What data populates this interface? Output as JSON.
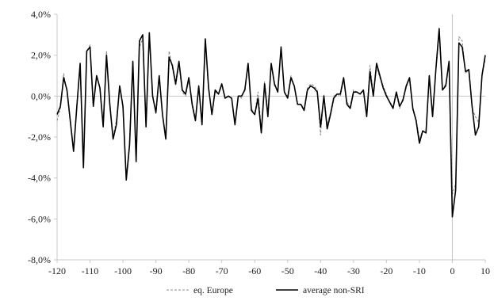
{
  "chart_data": {
    "type": "line",
    "title": "",
    "xlabel": "",
    "ylabel": "",
    "xlim": [
      -120,
      10
    ],
    "ylim": [
      -8.0,
      4.0
    ],
    "x_ticks": [
      -120,
      -110,
      -100,
      -90,
      -80,
      -70,
      -60,
      -50,
      -40,
      -30,
      -20,
      -10,
      0,
      10
    ],
    "x_tick_labels": [
      "-120",
      "-110",
      "-100",
      "-90",
      "-80",
      "-70",
      "-60",
      "-50",
      "-40",
      "-30",
      "-20",
      "-10",
      "0",
      "10"
    ],
    "y_ticks": [
      -8,
      -6,
      -4,
      -2,
      0,
      2,
      4
    ],
    "y_tick_labels": [
      "-8,0%",
      "-6,0%",
      "-4,0%",
      "-2,0%",
      "0,0%",
      "2,0%",
      "4,0%"
    ],
    "grid": false,
    "zero_line": true,
    "vertical_marker_at_x": 0,
    "legend_position": "bottom",
    "colors": {
      "axis": "#c8c8c8",
      "series_nonsri": "#000000",
      "series_europe": "#8c8c8c"
    },
    "x": [
      -120,
      -119,
      -118,
      -117,
      -116,
      -115,
      -114,
      -113,
      -112,
      -111,
      -110,
      -109,
      -108,
      -107,
      -106,
      -105,
      -104,
      -103,
      -102,
      -101,
      -100,
      -99,
      -98,
      -97,
      -96,
      -95,
      -94,
      -93,
      -92,
      -91,
      -90,
      -89,
      -88,
      -87,
      -86,
      -85,
      -84,
      -83,
      -82,
      -81,
      -80,
      -79,
      -78,
      -77,
      -76,
      -75,
      -74,
      -73,
      -72,
      -71,
      -70,
      -69,
      -68,
      -67,
      -66,
      -65,
      -64,
      -63,
      -62,
      -61,
      -60,
      -59,
      -58,
      -57,
      -56,
      -55,
      -54,
      -53,
      -52,
      -51,
      -50,
      -49,
      -48,
      -47,
      -46,
      -45,
      -44,
      -43,
      -42,
      -41,
      -40,
      -39,
      -38,
      -37,
      -36,
      -35,
      -34,
      -33,
      -32,
      -31,
      -30,
      -29,
      -28,
      -27,
      -26,
      -25,
      -24,
      -23,
      -22,
      -21,
      -20,
      -19,
      -18,
      -17,
      -16,
      -15,
      -14,
      -13,
      -12,
      -11,
      -10,
      -9,
      -8,
      -7,
      -6,
      -5,
      -4,
      -3,
      -2,
      -1,
      0,
      1,
      2,
      3,
      4,
      5,
      6,
      7,
      8,
      9,
      10
    ],
    "series": [
      {
        "name": "eq. Europe",
        "style": "dashed",
        "values": [
          -1.2,
          -0.6,
          1.1,
          0.2,
          -1.3,
          -2.6,
          -0.4,
          1.5,
          -3.4,
          2.1,
          2.5,
          -0.4,
          1.0,
          0.4,
          -1.3,
          2.2,
          -0.3,
          -2.0,
          -1.2,
          0.5,
          -0.6,
          -4.0,
          -2.2,
          1.6,
          -3.0,
          2.4,
          2.8,
          -1.4,
          3.0,
          0.1,
          -0.9,
          0.9,
          -0.9,
          -2.0,
          2.2,
          1.4,
          0.5,
          1.5,
          0.2,
          0.0,
          0.8,
          -0.3,
          -1.1,
          0.4,
          -1.3,
          2.7,
          0.3,
          -0.8,
          0.2,
          0.1,
          0.5,
          -0.1,
          0.0,
          -0.1,
          -1.3,
          0.0,
          -0.1,
          0.4,
          1.5,
          -0.6,
          -0.9,
          0.2,
          -1.6,
          0.7,
          -0.8,
          1.6,
          0.5,
          0.3,
          2.3,
          0.2,
          0.0,
          1.0,
          0.5,
          -0.4,
          -0.4,
          -0.6,
          0.4,
          0.6,
          0.5,
          0.3,
          -1.9,
          0.1,
          -1.4,
          -0.8,
          0.0,
          0.1,
          0.0,
          0.8,
          -0.3,
          -0.5,
          0.3,
          0.2,
          0.1,
          0.3,
          -0.9,
          1.5,
          0.1,
          1.4,
          0.9,
          0.5,
          0.1,
          -0.3,
          -0.5,
          0.1,
          -0.6,
          -0.1,
          0.4,
          0.9,
          -0.7,
          -1.1,
          -2.1,
          -1.7,
          -1.7,
          0.9,
          -0.9,
          1.2,
          3.0,
          0.3,
          0.6,
          1.5,
          -4.8,
          -4.3,
          2.9,
          2.7,
          1.1,
          1.3,
          -0.6,
          -1.0,
          -1.3,
          1.0,
          1.8
        ]
      },
      {
        "name": "average non-SRI",
        "style": "solid",
        "values": [
          -0.9,
          -0.5,
          0.9,
          0.3,
          -1.2,
          -2.7,
          -0.5,
          1.6,
          -3.5,
          2.2,
          2.4,
          -0.5,
          1.0,
          0.4,
          -1.5,
          2.0,
          -0.4,
          -2.1,
          -1.4,
          0.5,
          -0.5,
          -4.1,
          -2.4,
          1.7,
          -3.2,
          2.7,
          3.0,
          -1.5,
          3.1,
          0.0,
          -0.8,
          1.0,
          -0.9,
          -2.1,
          1.9,
          1.5,
          0.6,
          1.7,
          0.3,
          0.1,
          0.9,
          -0.4,
          -1.2,
          0.5,
          -1.4,
          2.8,
          0.4,
          -0.9,
          0.3,
          0.1,
          0.6,
          -0.1,
          0.0,
          -0.1,
          -1.4,
          0.0,
          0.0,
          0.3,
          1.6,
          -0.7,
          -0.9,
          -0.1,
          -1.8,
          0.6,
          -1.0,
          1.6,
          0.6,
          0.2,
          2.4,
          0.2,
          -0.1,
          0.9,
          0.5,
          -0.4,
          -0.4,
          -0.7,
          0.3,
          0.5,
          0.4,
          0.2,
          -1.5,
          0.0,
          -1.6,
          -0.9,
          -0.1,
          0.1,
          0.1,
          0.9,
          -0.4,
          -0.6,
          0.2,
          0.2,
          0.1,
          0.3,
          -1.0,
          1.2,
          0.0,
          1.6,
          1.0,
          0.4,
          0.0,
          -0.3,
          -0.6,
          0.2,
          -0.5,
          -0.2,
          0.5,
          0.9,
          -0.6,
          -1.2,
          -2.3,
          -1.7,
          -1.8,
          1.0,
          -1.0,
          1.3,
          3.3,
          0.3,
          0.5,
          1.7,
          -5.9,
          -4.6,
          2.6,
          2.4,
          1.2,
          1.3,
          -0.5,
          -1.9,
          -1.5,
          1.0,
          2.0
        ]
      }
    ]
  }
}
